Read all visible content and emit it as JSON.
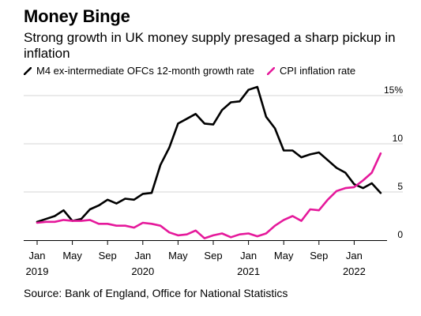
{
  "title": "Money Binge",
  "subtitle": "Strong growth in UK money supply presaged a sharp pickup in inflation",
  "source": "Source: Bank of England, Office for National Statistics",
  "colors": {
    "m4": "#000000",
    "cpi": "#e5199b",
    "grid": "#d6d6d6",
    "axis": "#000000"
  },
  "chart_data": {
    "type": "line",
    "x_unit": "month",
    "x": [
      "2019-01",
      "2019-02",
      "2019-03",
      "2019-04",
      "2019-05",
      "2019-06",
      "2019-07",
      "2019-08",
      "2019-09",
      "2019-10",
      "2019-11",
      "2019-12",
      "2020-01",
      "2020-02",
      "2020-03",
      "2020-04",
      "2020-05",
      "2020-06",
      "2020-07",
      "2020-08",
      "2020-09",
      "2020-10",
      "2020-11",
      "2020-12",
      "2021-01",
      "2021-02",
      "2021-03",
      "2021-04",
      "2021-05",
      "2021-06",
      "2021-07",
      "2021-08",
      "2021-09",
      "2021-10",
      "2021-11",
      "2021-12",
      "2022-01",
      "2022-02",
      "2022-03",
      "2022-04"
    ],
    "series": [
      {
        "name": "M4 ex-intermediate OFCs 12-month growth rate",
        "color": "#000000",
        "values": [
          1.9,
          2.2,
          2.5,
          3.1,
          2.0,
          2.2,
          3.2,
          3.6,
          4.2,
          3.8,
          4.3,
          4.2,
          4.8,
          4.9,
          7.8,
          9.6,
          12.1,
          12.6,
          13.1,
          12.1,
          12.0,
          13.5,
          14.3,
          14.4,
          15.6,
          15.9,
          12.8,
          11.6,
          9.3,
          9.3,
          8.6,
          8.9,
          9.1,
          8.3,
          7.5,
          7.0,
          5.8,
          5.4,
          5.9,
          4.9
        ]
      },
      {
        "name": "CPI inflation rate",
        "color": "#e5199b",
        "values": [
          1.8,
          1.9,
          1.9,
          2.1,
          2.0,
          2.0,
          2.1,
          1.7,
          1.7,
          1.5,
          1.5,
          1.3,
          1.8,
          1.7,
          1.5,
          0.8,
          0.5,
          0.6,
          1.0,
          0.2,
          0.5,
          0.7,
          0.3,
          0.6,
          0.7,
          0.4,
          0.7,
          1.5,
          2.1,
          2.5,
          2.0,
          3.2,
          3.1,
          4.2,
          5.1,
          5.4,
          5.5,
          6.2,
          7.0,
          9.0
        ]
      }
    ],
    "y_axis": {
      "min": 0,
      "max": 15,
      "ticks": [
        0,
        5,
        10,
        15
      ],
      "tick_labels": [
        "0",
        "5",
        "10",
        "15%"
      ],
      "position": "right"
    },
    "x_axis": {
      "ticks": [
        {
          "x": "2019-01",
          "month": "Jan",
          "year": "2019"
        },
        {
          "x": "2019-05",
          "month": "May",
          "year": ""
        },
        {
          "x": "2019-09",
          "month": "Sep",
          "year": ""
        },
        {
          "x": "2020-01",
          "month": "Jan",
          "year": "2020"
        },
        {
          "x": "2020-05",
          "month": "May",
          "year": ""
        },
        {
          "x": "2020-09",
          "month": "Sep",
          "year": ""
        },
        {
          "x": "2021-01",
          "month": "Jan",
          "year": "2021"
        },
        {
          "x": "2021-05",
          "month": "May",
          "year": ""
        },
        {
          "x": "2021-09",
          "month": "Sep",
          "year": ""
        },
        {
          "x": "2022-01",
          "month": "Jan",
          "year": "2022"
        }
      ]
    },
    "grid": true,
    "legend": "top-left"
  }
}
